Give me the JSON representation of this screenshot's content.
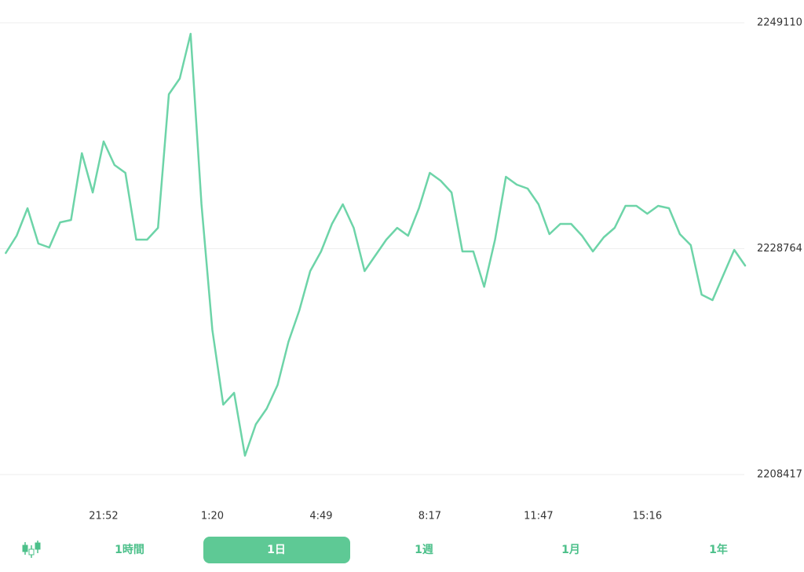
{
  "chart_data": {
    "type": "line",
    "categories": [
      null,
      null,
      null,
      null,
      null,
      null,
      null,
      null,
      null,
      "21:52",
      null,
      null,
      null,
      null,
      null,
      null,
      null,
      null,
      null,
      "1:20",
      null,
      null,
      null,
      null,
      null,
      null,
      null,
      null,
      null,
      "4:49",
      null,
      null,
      null,
      null,
      null,
      null,
      null,
      null,
      null,
      "8:17",
      null,
      null,
      null,
      null,
      null,
      null,
      null,
      null,
      null,
      "11:47",
      null,
      null,
      null,
      null,
      null,
      null,
      null,
      null,
      null,
      "15:16",
      null,
      null,
      null,
      null,
      null,
      null,
      null,
      null,
      null
    ],
    "series": [
      {
        "color": "#6dd4a8",
        "values": [
          2228374,
          2229931,
          2232408,
          2229224,
          2228870,
          2231134,
          2231347,
          2237362,
          2233824,
          2238424,
          2236301,
          2235593,
          2229577,
          2229577,
          2230639,
          2242670,
          2244085,
          2248119,
          2232762,
          2221439,
          2214716,
          2215777,
          2210116,
          2212947,
          2214362,
          2216485,
          2220377,
          2223208,
          2226747,
          2228516,
          2230993,
          2232762,
          2230639,
          2226747,
          2228162,
          2229577,
          2230639,
          2229931,
          2232408,
          2235593,
          2234885,
          2233824,
          2228516,
          2228516,
          2225331,
          2229577,
          2235239,
          2234531,
          2234178,
          2232762,
          2230073,
          2230993,
          2230993,
          2229931,
          2228516,
          2229790,
          2230639,
          2232621,
          2232621,
          2231913,
          2232621,
          2232408,
          2230073,
          2229082,
          2224624,
          2224128,
          2226393,
          2228657,
          2227242
        ]
      }
    ],
    "ylim": [
      2208417,
      2249110
    ],
    "yticks": [
      2208417,
      2228764,
      2249110
    ],
    "grid": true
  },
  "tabs": [
    "1時間",
    "1日",
    "1週",
    "1月",
    "1年"
  ],
  "active_tab": 1
}
